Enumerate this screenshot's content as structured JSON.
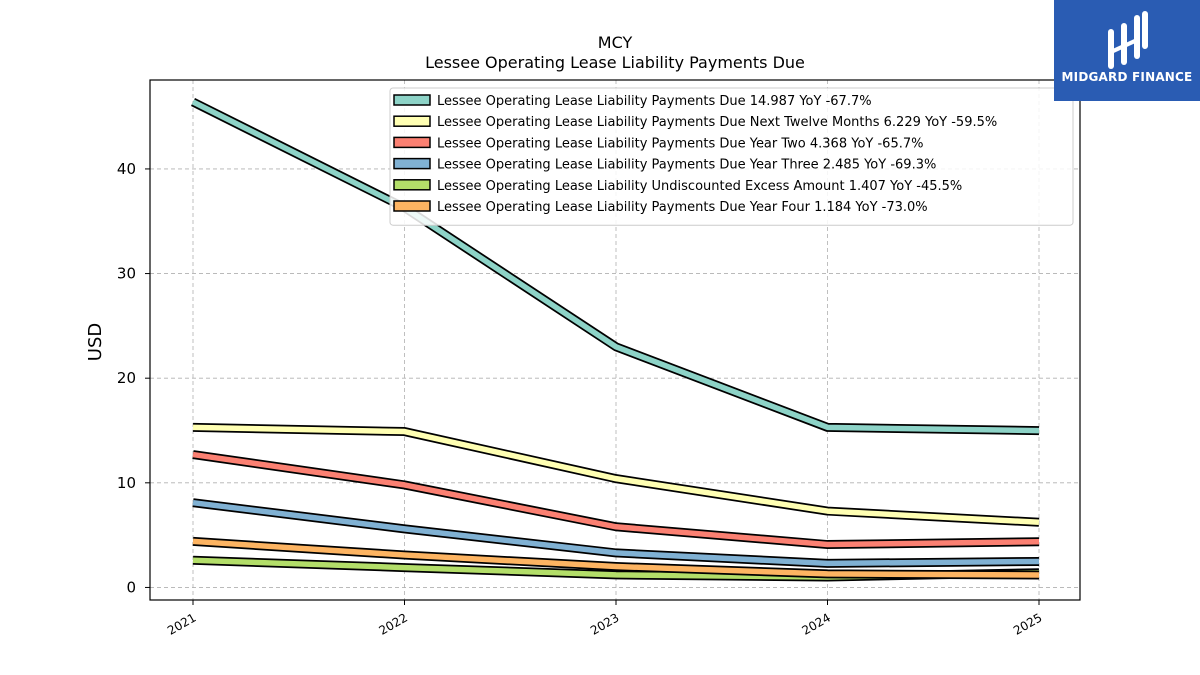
{
  "logo": {
    "text": "MIDGARD FINANCE",
    "bg_color": "#2a5cb3"
  },
  "chart_data": {
    "type": "line",
    "title": "MCY",
    "subtitle": "Lessee Operating Lease Liability Payments Due",
    "xlabel": "",
    "ylabel": "USD",
    "categories": [
      "2021",
      "2022",
      "2023",
      "2024",
      "2025"
    ],
    "yticks": [
      0,
      10,
      20,
      30,
      40
    ],
    "ylim": [
      -1.2,
      48.5
    ],
    "grid": true,
    "legend_position": "top-right",
    "series": [
      {
        "name": "Lessee Operating Lease Liability Payments Due  14.987 YoY -67.7%",
        "color": "#8dd3c7",
        "values": [
          46.4,
          36.3,
          23.0,
          15.3,
          14.987
        ]
      },
      {
        "name": "Lessee Operating Lease Liability Payments Due Next Twelve Months  6.229 YoY -59.5%",
        "color": "#ffffb3",
        "values": [
          15.3,
          14.9,
          10.4,
          7.3,
          6.229
        ]
      },
      {
        "name": "Lessee Operating Lease Liability Payments Due Year Two  4.368 YoY -65.7%",
        "color": "#fb8072",
        "values": [
          12.7,
          9.8,
          5.8,
          4.1,
          4.368
        ]
      },
      {
        "name": "Lessee Operating Lease Liability Payments Due Year Three  2.485 YoY -69.3%",
        "color": "#80b1d3",
        "values": [
          8.1,
          5.6,
          3.3,
          2.3,
          2.485
        ]
      },
      {
        "name": "Lessee Operating Lease Liability Undiscounted Excess Amount  1.407 YoY -45.5%",
        "color": "#b3de69",
        "values": [
          2.6,
          1.9,
          1.2,
          1.0,
          1.407
        ]
      },
      {
        "name": "Lessee Operating Lease Liability Payments Due Year Four  1.184 YoY -73.0%",
        "color": "#fdb462",
        "values": [
          4.4,
          3.1,
          2.0,
          1.3,
          1.184
        ]
      }
    ]
  }
}
